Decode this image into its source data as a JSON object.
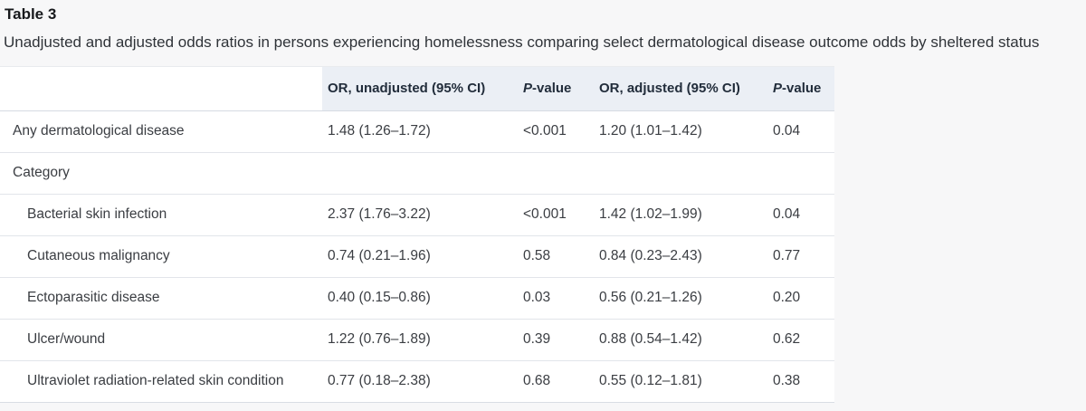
{
  "title": "Table 3",
  "caption": "Unadjusted and adjusted odds ratios in persons experiencing homelessness comparing select dermatological disease outcome odds by sheltered status",
  "colors": {
    "page_bg": "#f7f7f8",
    "table_bg": "#ffffff",
    "header_bg": "#ebeff5",
    "row_border": "#e2e5ea",
    "header_border": "#d6dbe2"
  },
  "table": {
    "columns": [
      {
        "label": ""
      },
      {
        "label": "OR, unadjusted (95% CI)"
      },
      {
        "italic": "P",
        "label": "-value"
      },
      {
        "label": "OR, adjusted (95% CI)"
      },
      {
        "italic": "P",
        "label": "-value"
      }
    ],
    "rows": [
      {
        "label": "Any dermatological disease",
        "or_unadjusted": "1.48 (1.26–1.72)",
        "p_unadjusted": "<0.001",
        "or_adjusted": "1.20 (1.01–1.42)",
        "p_adjusted": "0.04"
      },
      {
        "label": "Category",
        "or_unadjusted": "",
        "p_unadjusted": "",
        "or_adjusted": "",
        "p_adjusted": ""
      },
      {
        "label": "Bacterial skin infection",
        "or_unadjusted": "2.37 (1.76–3.22)",
        "p_unadjusted": "<0.001",
        "or_adjusted": "1.42 (1.02–1.99)",
        "p_adjusted": "0.04"
      },
      {
        "label": "Cutaneous malignancy",
        "or_unadjusted": "0.74 (0.21–1.96)",
        "p_unadjusted": "0.58",
        "or_adjusted": "0.84 (0.23–2.43)",
        "p_adjusted": "0.77"
      },
      {
        "label": "Ectoparasitic disease",
        "or_unadjusted": "0.40 (0.15–0.86)",
        "p_unadjusted": "0.03",
        "or_adjusted": "0.56 (0.21–1.26)",
        "p_adjusted": "0.20"
      },
      {
        "label": "Ulcer/wound",
        "or_unadjusted": "1.22 (0.76–1.89)",
        "p_unadjusted": "0.39",
        "or_adjusted": "0.88 (0.54–1.42)",
        "p_adjusted": "0.62"
      },
      {
        "label": "Ultraviolet radiation-related skin condition",
        "or_unadjusted": "0.77 (0.18–2.38)",
        "p_unadjusted": "0.68",
        "or_adjusted": "0.55 (0.12–1.81)",
        "p_adjusted": "0.38"
      }
    ]
  }
}
